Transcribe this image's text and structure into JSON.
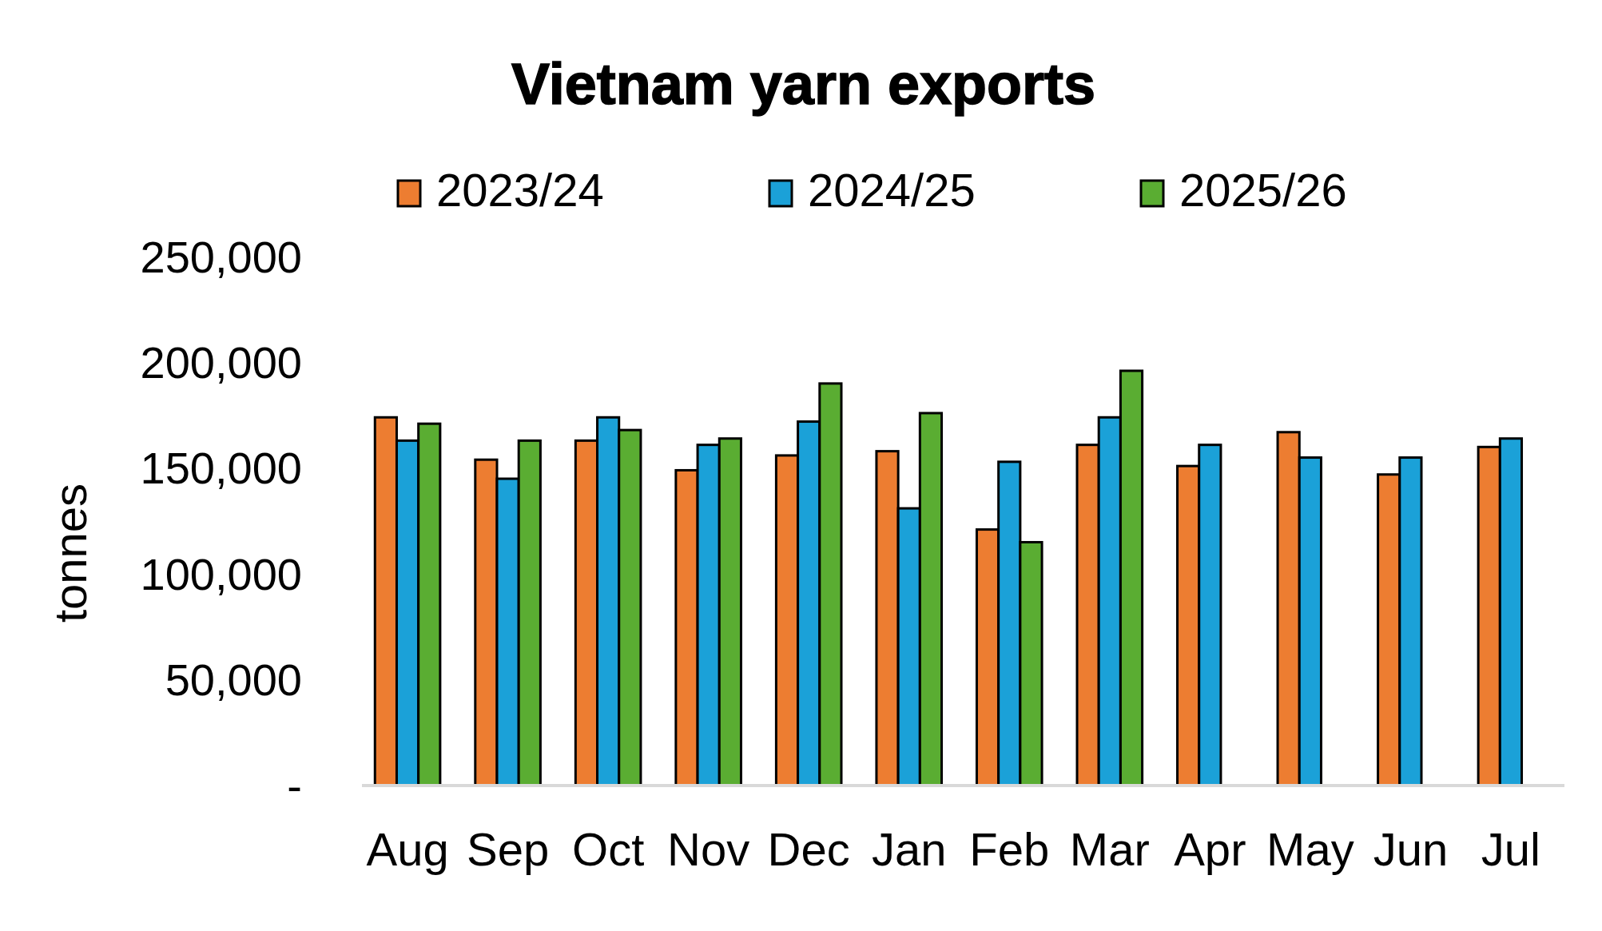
{
  "chart_data": {
    "type": "bar",
    "title": "Vietnam yarn exports",
    "ylabel": "tonnes",
    "categories": [
      "Aug",
      "Sep",
      "Oct",
      "Nov",
      "Dec",
      "Jan",
      "Feb",
      "Mar",
      "Apr",
      "May",
      "Jun",
      "Jul"
    ],
    "series": [
      {
        "name": "2023/24",
        "color": "#ed7d31",
        "values": [
          174000,
          154000,
          163000,
          149000,
          156000,
          158000,
          121000,
          161000,
          151000,
          167000,
          147000,
          160000
        ]
      },
      {
        "name": "2024/25",
        "color": "#1ba1d8",
        "values": [
          163000,
          145000,
          174000,
          161000,
          172000,
          131000,
          153000,
          174000,
          161000,
          155000,
          155000,
          164000
        ]
      },
      {
        "name": "2025/26",
        "color": "#5aad32",
        "values": [
          171000,
          163000,
          168000,
          164000,
          190000,
          176000,
          115000,
          196000,
          null,
          null,
          null,
          null
        ]
      }
    ],
    "ylim": [
      0,
      250000
    ],
    "yticks": [
      {
        "value": 0,
        "label": "-"
      },
      {
        "value": 50000,
        "label": "50,000"
      },
      {
        "value": 100000,
        "label": "100,000"
      },
      {
        "value": 150000,
        "label": "150,000"
      },
      {
        "value": 200000,
        "label": "200,000"
      },
      {
        "value": 250000,
        "label": "250,000"
      }
    ],
    "legend": "top",
    "grid": false
  }
}
